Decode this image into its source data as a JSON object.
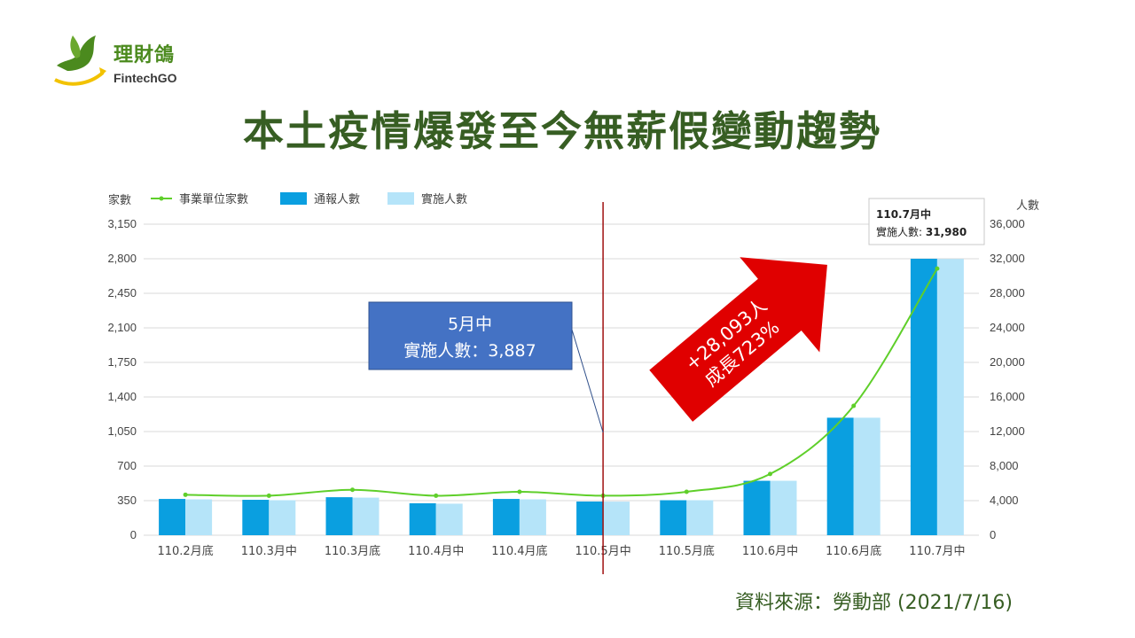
{
  "logo": {
    "name": "理財鴿",
    "sub": "FintechGO"
  },
  "title": "本土疫情爆發至今無薪假變動趨勢",
  "source": "資料來源：勞動部 (2021/7/16)",
  "colors": {
    "line": "#5fcf2a",
    "bar1": "#0a9fe0",
    "bar2": "#b5e4f9",
    "title": "#375e23",
    "arrow": "#e00000",
    "callout": "#4472c4",
    "divider": "#a01010"
  },
  "callout": {
    "line1": "5月中",
    "line2": "實施人數：3,887"
  },
  "arrow_text": {
    "line1": "+28,093人",
    "line2": "成長723%"
  },
  "tooltip": {
    "line1": "110.7月中",
    "label": "實施人數: ",
    "value": "31,980"
  },
  "chart_data": {
    "type": "bar",
    "categories": [
      "110.2月底",
      "110.3月中",
      "110.3月底",
      "110.4月中",
      "110.4月底",
      "110.5月中",
      "110.5月底",
      "110.6月中",
      "110.6月底",
      "110.7月中"
    ],
    "series": [
      {
        "name": "事業單位家數",
        "type": "line",
        "axis": "left",
        "values": [
          410,
          400,
          460,
          400,
          440,
          400,
          440,
          620,
          1310,
          2700
        ]
      },
      {
        "name": "通報人數",
        "type": "bar",
        "axis": "right",
        "values": [
          4200,
          4100,
          4400,
          3700,
          4200,
          3900,
          4050,
          6300,
          13600,
          32000
        ]
      },
      {
        "name": "實施人數",
        "type": "bar",
        "axis": "right",
        "values": [
          4150,
          4050,
          4350,
          3650,
          4150,
          3887,
          4050,
          6300,
          13600,
          31980
        ]
      }
    ],
    "yleft": {
      "label": "家數",
      "min": 0,
      "max": 3150,
      "ticks": [
        "0",
        "350",
        "700",
        "1,050",
        "1,400",
        "1,750",
        "2,100",
        "2,450",
        "2,800",
        "3,150"
      ]
    },
    "yright": {
      "label": "人數",
      "min": 0,
      "max": 36000,
      "ticks": [
        "0",
        "4,000",
        "8,000",
        "12,000",
        "16,000",
        "20,000",
        "24,000",
        "28,000",
        "32,000",
        "36,000"
      ]
    },
    "legend": "top-left",
    "grid": true
  }
}
